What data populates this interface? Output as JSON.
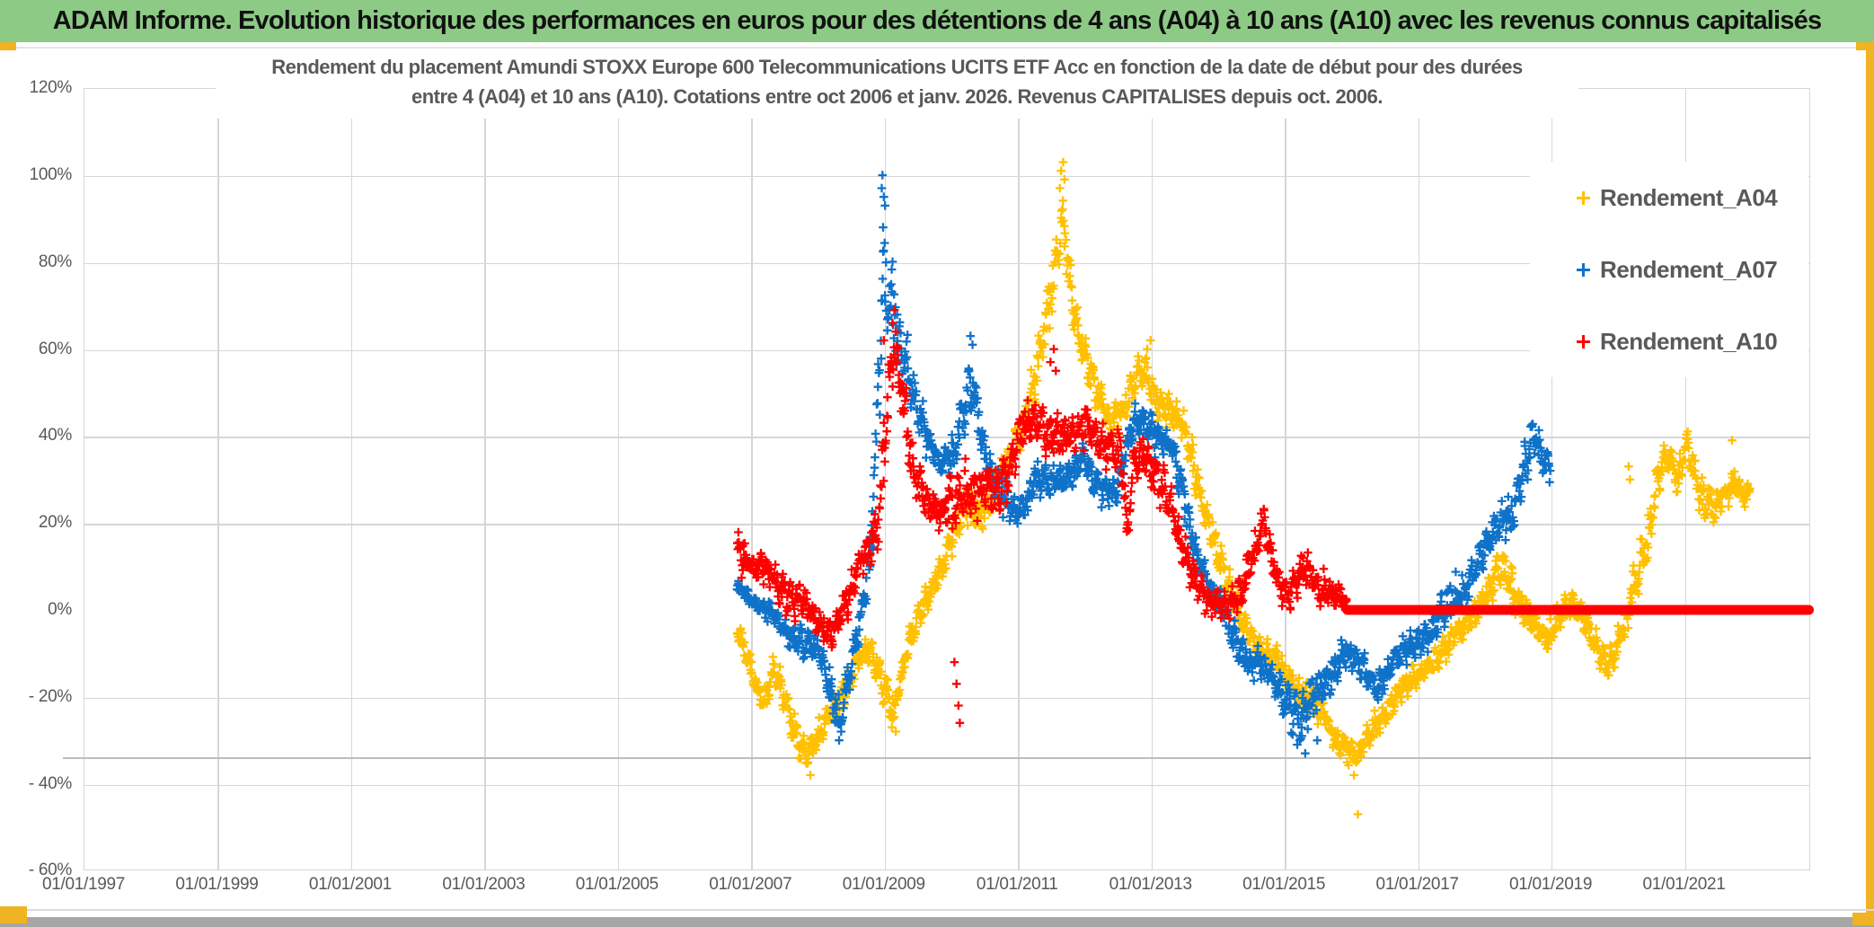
{
  "header": {
    "title": "ADAM Informe. Evolution historique des performances en euros pour des détentions de 4 ans (A04) à 10 ans (A10) avec les revenus connus capitalisés"
  },
  "colors": {
    "header_bg": "#8DCA86",
    "header_text": "#111111",
    "accent_gold": "#F0B323",
    "text_gray": "#595959",
    "gridline": "#D6D6D6",
    "series_a04": "#FFC000",
    "series_a07": "#0F72C9",
    "series_a10": "#FF0000"
  },
  "chart_data": {
    "type": "scatter",
    "marker": "plus",
    "title_line1": "Rendement du placement Amundi STOXX Europe 600 Telecommunications UCITS ETF Acc en fonction de la date de début pour des durées",
    "title_line2": "entre 4 (A04) et 10 ans (A10). Cotations entre oct 2006 et janv. 2026. Revenus CAPITALISES depuis oct. 2006.",
    "xlabel": "",
    "ylabel": "",
    "grid": true,
    "legend_position": "inside-top-right",
    "ylim": [
      -60,
      120
    ],
    "y_tick_values": [
      120,
      100,
      80,
      60,
      40,
      20,
      0,
      -20,
      -40,
      -60
    ],
    "y_tick_labels": [
      "120%",
      "100%",
      "80%",
      "60%",
      "40%",
      "20%",
      "0%",
      "- 20%",
      "- 40%",
      "- 60%"
    ],
    "x_tick_labels": [
      "01/01/1997",
      "01/01/1999",
      "01/01/2001",
      "01/01/2003",
      "01/01/2005",
      "01/01/2007",
      "01/01/2009",
      "01/01/2011",
      "01/01/2013",
      "01/01/2015",
      "01/01/2017",
      "01/01/2019",
      "01/01/2021"
    ],
    "x_axis_years": [
      1997,
      2022.9
    ],
    "note": "x = start date of holding period; y = total return in %. Dense daily scatter approximated by anchor polylines [year, value_pct, half_spread_pct].",
    "series": [
      {
        "name": "Rendement_A04",
        "color": "#FFC000",
        "anchors": [
          [
            2006.8,
            -5,
            3
          ],
          [
            2007.0,
            -13,
            4
          ],
          [
            2007.2,
            -21,
            5
          ],
          [
            2007.35,
            -15,
            4
          ],
          [
            2007.6,
            -25,
            5
          ],
          [
            2007.85,
            -33,
            4
          ],
          [
            2008.05,
            -29,
            4
          ],
          [
            2008.3,
            -21,
            4
          ],
          [
            2008.55,
            -13,
            4
          ],
          [
            2008.75,
            -9,
            4
          ],
          [
            2009.0,
            -17,
            5
          ],
          [
            2009.15,
            -23,
            4
          ],
          [
            2009.35,
            -10,
            4
          ],
          [
            2009.55,
            -1,
            4
          ],
          [
            2009.75,
            7,
            4
          ],
          [
            2009.95,
            13,
            4
          ],
          [
            2010.2,
            22,
            5
          ],
          [
            2010.45,
            24,
            5
          ],
          [
            2010.65,
            27,
            5
          ],
          [
            2010.9,
            34,
            5
          ],
          [
            2011.1,
            44,
            6
          ],
          [
            2011.35,
            58,
            7
          ],
          [
            2011.55,
            75,
            8
          ],
          [
            2011.68,
            90,
            9
          ],
          [
            2011.8,
            76,
            8
          ],
          [
            2011.95,
            62,
            7
          ],
          [
            2012.15,
            50,
            6
          ],
          [
            2012.4,
            44,
            5
          ],
          [
            2012.65,
            48,
            5
          ],
          [
            2012.9,
            55,
            5
          ],
          [
            2013.1,
            49,
            5
          ],
          [
            2013.35,
            45,
            5
          ],
          [
            2013.55,
            38,
            5
          ],
          [
            2013.75,
            28,
            6
          ],
          [
            2013.95,
            17,
            5
          ],
          [
            2014.15,
            5,
            5
          ],
          [
            2014.4,
            -3,
            4
          ],
          [
            2014.7,
            -10,
            4
          ],
          [
            2015.0,
            -14,
            4
          ],
          [
            2015.3,
            -19,
            5
          ],
          [
            2015.6,
            -25,
            5
          ],
          [
            2015.9,
            -31,
            4
          ],
          [
            2016.1,
            -34,
            4
          ],
          [
            2016.35,
            -27,
            4
          ],
          [
            2016.6,
            -21,
            4
          ],
          [
            2016.9,
            -17,
            4
          ],
          [
            2017.2,
            -12,
            4
          ],
          [
            2017.5,
            -8,
            4
          ],
          [
            2017.8,
            -1,
            4
          ],
          [
            2018.1,
            5,
            5
          ],
          [
            2018.3,
            9,
            5
          ],
          [
            2018.5,
            4,
            5
          ],
          [
            2018.75,
            -4,
            4
          ],
          [
            2018.95,
            -8,
            4
          ],
          [
            2019.2,
            2,
            4
          ],
          [
            2019.4,
            1,
            4
          ],
          [
            2019.6,
            -7,
            4
          ],
          [
            2019.85,
            -12,
            4
          ],
          [
            2020.0,
            -8,
            5
          ],
          [
            2020.15,
            -2,
            7
          ],
          [
            2020.3,
            6,
            6
          ],
          [
            2020.45,
            15,
            6
          ],
          [
            2020.6,
            33,
            6
          ],
          [
            2020.75,
            36,
            5
          ],
          [
            2020.9,
            28,
            5
          ],
          [
            2021.05,
            38,
            4
          ],
          [
            2021.25,
            28,
            6
          ],
          [
            2021.45,
            24,
            5
          ],
          [
            2021.6,
            25,
            4
          ],
          [
            2021.75,
            29,
            5
          ],
          [
            2021.9,
            28,
            4
          ],
          [
            2022.0,
            28,
            3
          ]
        ],
        "extra_points": [
          [
            2011.66,
            101
          ],
          [
            2011.69,
            103
          ],
          [
            2011.64,
            97
          ],
          [
            2011.71,
            99
          ],
          [
            2012.95,
            60
          ],
          [
            2013.0,
            62
          ],
          [
            2007.9,
            -38
          ],
          [
            2009.12,
            -27
          ],
          [
            2009.18,
            -28
          ],
          [
            2016.05,
            -38
          ],
          [
            2016.11,
            -47
          ],
          [
            2020.17,
            33
          ],
          [
            2020.19,
            30
          ],
          [
            2021.72,
            39
          ]
        ]
      },
      {
        "name": "Rendement_A07",
        "color": "#0F72C9",
        "anchors": [
          [
            2006.8,
            6,
            2
          ],
          [
            2007.0,
            3,
            3
          ],
          [
            2007.25,
            -1,
            3
          ],
          [
            2007.5,
            -4,
            3
          ],
          [
            2007.75,
            -7,
            4
          ],
          [
            2008.0,
            -10,
            5
          ],
          [
            2008.2,
            -18,
            7
          ],
          [
            2008.35,
            -24,
            5
          ],
          [
            2008.5,
            -14,
            5
          ],
          [
            2008.65,
            -4,
            5
          ],
          [
            2008.8,
            12,
            9
          ],
          [
            2008.92,
            55,
            18
          ],
          [
            2009.0,
            80,
            12
          ],
          [
            2009.1,
            72,
            12
          ],
          [
            2009.25,
            58,
            9
          ],
          [
            2009.45,
            48,
            7
          ],
          [
            2009.65,
            42,
            6
          ],
          [
            2009.85,
            33,
            6
          ],
          [
            2010.05,
            35,
            6
          ],
          [
            2010.2,
            47,
            7
          ],
          [
            2010.32,
            54,
            7
          ],
          [
            2010.45,
            42,
            6
          ],
          [
            2010.6,
            30,
            5
          ],
          [
            2010.8,
            25,
            5
          ],
          [
            2011.0,
            24,
            5
          ],
          [
            2011.25,
            28,
            5
          ],
          [
            2011.5,
            30,
            5
          ],
          [
            2011.75,
            31,
            5
          ],
          [
            2012.0,
            33,
            5
          ],
          [
            2012.25,
            29,
            5
          ],
          [
            2012.5,
            28,
            5
          ],
          [
            2012.7,
            40,
            5
          ],
          [
            2012.9,
            44,
            5
          ],
          [
            2013.1,
            41,
            5
          ],
          [
            2013.3,
            36,
            5
          ],
          [
            2013.5,
            25,
            6
          ],
          [
            2013.7,
            13,
            6
          ],
          [
            2013.9,
            5,
            5
          ],
          [
            2014.1,
            -2,
            5
          ],
          [
            2014.35,
            -8,
            5
          ],
          [
            2014.6,
            -13,
            5
          ],
          [
            2014.85,
            -17,
            5
          ],
          [
            2015.05,
            -20,
            6
          ],
          [
            2015.25,
            -25,
            6
          ],
          [
            2015.45,
            -22,
            6
          ],
          [
            2015.65,
            -16,
            5
          ],
          [
            2015.9,
            -9,
            4
          ],
          [
            2016.1,
            -13,
            4
          ],
          [
            2016.4,
            -17,
            5
          ],
          [
            2016.65,
            -12,
            4
          ],
          [
            2016.95,
            -8,
            4
          ],
          [
            2017.25,
            -4,
            5
          ],
          [
            2017.5,
            1,
            6
          ],
          [
            2017.75,
            7,
            5
          ],
          [
            2018.0,
            13,
            5
          ],
          [
            2018.2,
            19,
            5
          ],
          [
            2018.4,
            22,
            6
          ],
          [
            2018.6,
            33,
            6
          ],
          [
            2018.75,
            39,
            6
          ],
          [
            2018.9,
            34,
            5
          ],
          [
            2019.0,
            31,
            4
          ]
        ],
        "extra_points": [
          [
            2008.97,
            97
          ],
          [
            2008.98,
            100
          ],
          [
            2009.0,
            95
          ],
          [
            2009.02,
            93
          ],
          [
            2008.99,
            88
          ],
          [
            2010.3,
            63
          ],
          [
            2010.33,
            61
          ],
          [
            2008.33,
            -30
          ],
          [
            2008.36,
            -28
          ],
          [
            2015.2,
            -31
          ],
          [
            2015.32,
            -33
          ],
          [
            2015.27,
            -29
          ],
          [
            2015.5,
            -30
          ]
        ]
      },
      {
        "name": "Rendement_A10",
        "color": "#FF0000",
        "anchors": [
          [
            2006.8,
            15,
            5
          ],
          [
            2007.0,
            10,
            5
          ],
          [
            2007.25,
            8,
            5
          ],
          [
            2007.5,
            5,
            5
          ],
          [
            2007.75,
            1,
            5
          ],
          [
            2008.0,
            -3,
            5
          ],
          [
            2008.25,
            -4,
            4
          ],
          [
            2008.5,
            3,
            5
          ],
          [
            2008.7,
            12,
            5
          ],
          [
            2008.9,
            20,
            6
          ],
          [
            2009.05,
            45,
            15
          ],
          [
            2009.15,
            60,
            8
          ],
          [
            2009.3,
            45,
            10
          ],
          [
            2009.45,
            33,
            7
          ],
          [
            2009.65,
            26,
            6
          ],
          [
            2009.85,
            21,
            5
          ],
          [
            2010.05,
            24,
            8
          ],
          [
            2010.25,
            30,
            9
          ],
          [
            2010.45,
            27,
            8
          ],
          [
            2010.65,
            26,
            8
          ],
          [
            2010.85,
            32,
            7
          ],
          [
            2011.05,
            42,
            7
          ],
          [
            2011.25,
            44,
            6
          ],
          [
            2011.45,
            40,
            6
          ],
          [
            2011.65,
            42,
            6
          ],
          [
            2011.85,
            39,
            6
          ],
          [
            2012.05,
            42,
            6
          ],
          [
            2012.25,
            40,
            6
          ],
          [
            2012.45,
            36,
            6
          ],
          [
            2012.55,
            35,
            6
          ],
          [
            2012.65,
            18,
            5
          ],
          [
            2012.75,
            33,
            6
          ],
          [
            2012.9,
            38,
            7
          ],
          [
            2013.1,
            30,
            6
          ],
          [
            2013.3,
            22,
            6
          ],
          [
            2013.5,
            15,
            6
          ],
          [
            2013.7,
            7,
            5
          ],
          [
            2013.9,
            0,
            4
          ],
          [
            2014.1,
            1,
            4
          ],
          [
            2014.3,
            4,
            5
          ],
          [
            2014.5,
            10,
            5
          ],
          [
            2014.7,
            19,
            5
          ],
          [
            2014.9,
            8,
            5
          ],
          [
            2015.1,
            4,
            5
          ],
          [
            2015.3,
            8,
            5
          ],
          [
            2015.5,
            6,
            5
          ],
          [
            2015.7,
            5,
            5
          ],
          [
            2015.85,
            3,
            4
          ],
          [
            2015.95,
            1,
            2
          ]
        ],
        "extra_points": [
          [
            2009.13,
            66
          ],
          [
            2009.16,
            69
          ],
          [
            2009.18,
            64
          ],
          [
            2009.0,
            62
          ],
          [
            2010.06,
            -12
          ],
          [
            2010.09,
            -17
          ],
          [
            2010.12,
            -22
          ],
          [
            2010.14,
            -26
          ],
          [
            2011.5,
            57
          ],
          [
            2011.55,
            60
          ],
          [
            2011.58,
            55
          ]
        ],
        "zero_line": {
          "start_year": 2015.95,
          "value": 0,
          "ends_at": "right edge of plot"
        }
      }
    ]
  }
}
